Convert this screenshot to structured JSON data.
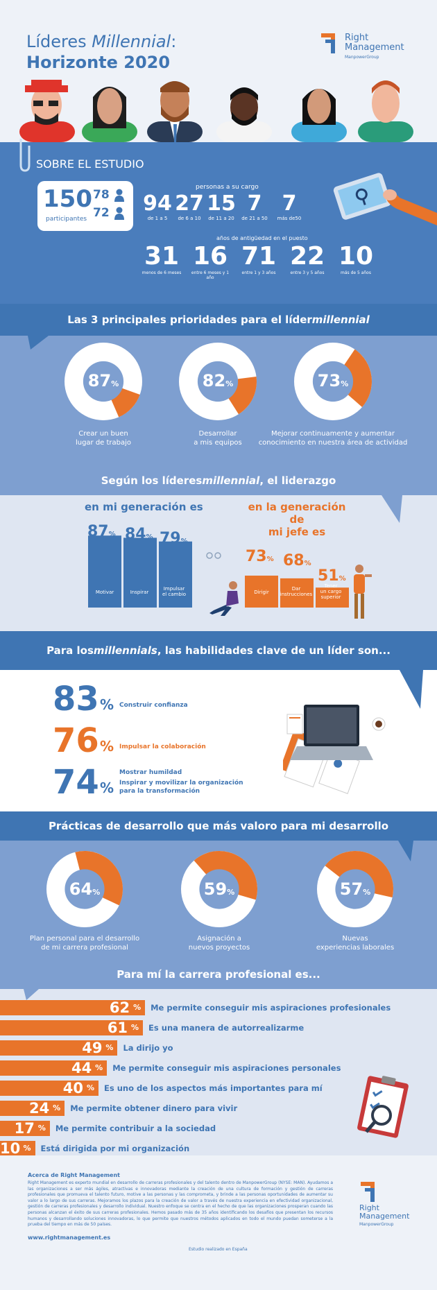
{
  "header": {
    "title_line1_pre": "Líderes ",
    "title_line1_em": "Millennial",
    "title_line1_post": ":",
    "title_line2": "Horizonte 2020",
    "logo_line1": "Right",
    "logo_line2": "Management",
    "logo_sub": "ManpowerGroup"
  },
  "about": {
    "heading": "SOBRE EL ESTUDIO",
    "participants_count": "150",
    "participants_label": "participantes",
    "male_count": "78",
    "female_count": "72",
    "reports_title": "personas a su cargo",
    "reports": [
      {
        "value": "94",
        "label": "de 1 a 5"
      },
      {
        "value": "27",
        "label": "de 6 a 10"
      },
      {
        "value": "15",
        "label": "de 11 a 20"
      },
      {
        "value": "7",
        "label": "de 21 a 50"
      },
      {
        "value": "7",
        "label": "más de50"
      }
    ],
    "tenure_title": "años de antigüedad en el puesto",
    "tenure": [
      {
        "value": "31",
        "label": "menos de 6 meses"
      },
      {
        "value": "16",
        "label": "entre 6 meses y 1 año"
      },
      {
        "value": "71",
        "label": "entre 1 y 3 años"
      },
      {
        "value": "22",
        "label": "entre 3 y 5 años"
      },
      {
        "value": "10",
        "label": "más de 5 años"
      }
    ]
  },
  "priorities": {
    "heading_pre": "Las 3 principales prioridades para el líder ",
    "heading_em": "millennial",
    "items": [
      {
        "value": 87,
        "label1": "Crear un buen",
        "label2": "lugar de trabajo"
      },
      {
        "value": 82,
        "label1": "Desarrollar",
        "label2": "a mis equipos"
      },
      {
        "value": 73,
        "label1": "Mejorar continuamente y aumentar",
        "label2": "conocimiento en nuestra área de actividad"
      }
    ]
  },
  "leadership": {
    "heading_pre": "Según los líderes ",
    "heading_em": "millennial",
    "heading_post": ", el liderazgo",
    "left_title": "en mi generación es",
    "right_title1": "en la generación de",
    "right_title2": "mi jefe es",
    "left_bars": [
      {
        "value": 87,
        "label1": "Motivar",
        "label2": ""
      },
      {
        "value": 84,
        "label1": "Inspirar",
        "label2": ""
      },
      {
        "value": 79,
        "label1": "Impulsar",
        "label2": "el cambio"
      }
    ],
    "right_bars": [
      {
        "value": 73,
        "label1": "Dirigir",
        "label2": "",
        "label3": ""
      },
      {
        "value": 68,
        "label1": "Dar",
        "label2": "instrucciones",
        "label3": ""
      },
      {
        "value": 51,
        "label1": "Tener",
        "label2": "un cargo",
        "label3": "superior"
      }
    ]
  },
  "skills": {
    "heading_pre": "Para los ",
    "heading_em": "millennials",
    "heading_post": ", las habilidades clave de un líder son...",
    "items": [
      {
        "value": "83",
        "text1": "Construir confianza",
        "text2": "",
        "color": "#3f75b3"
      },
      {
        "value": "76",
        "text1": "Impulsar la colaboración",
        "text2": "",
        "color": "#e8742a"
      },
      {
        "value": "74",
        "text1": "Mostrar humildad",
        "text2": "Inspirar y movilizar la organización",
        "text3": "para la transformación",
        "color": "#3f75b3"
      }
    ]
  },
  "practices": {
    "heading": "Prácticas de desarrollo que más valoro para mi desarrollo",
    "items": [
      {
        "value": 64,
        "label1": "Plan personal para el desarrollo",
        "label2": "de mi carrera profesional"
      },
      {
        "value": 59,
        "label1": "Asignación a",
        "label2": "nuevos proyectos"
      },
      {
        "value": 57,
        "label1": "Nuevas",
        "label2": "experiencias laborales"
      }
    ]
  },
  "career": {
    "heading": "Para mí la carrera profesional es...",
    "items": [
      {
        "value": 62,
        "text": "Me permite conseguir mis aspiraciones profesionales"
      },
      {
        "value": 61,
        "text": "Es una manera de autorrealizarme"
      },
      {
        "value": 49,
        "text": "La dirijo yo"
      },
      {
        "value": 44,
        "text": "Me permite conseguir mis aspiraciones personales"
      },
      {
        "value": 40,
        "text": "Es uno de los aspectos más importantes para mí"
      },
      {
        "value": 24,
        "text": "Me permite obtener dinero para vivir"
      },
      {
        "value": 17,
        "text": "Me permite contribuir a la sociedad"
      },
      {
        "value": 10,
        "text": "Está dirigida por mi organización"
      }
    ]
  },
  "footer": {
    "about_title": "Acerca de Right Management",
    "about_text": "Right Management es experto mundial en desarrollo de carreras profesionales y del talento dentro de ManpowerGroup (NYSE: MAN). Ayudamos a las organizaciones a ser más ágiles, atractivas e innovadoras mediante la creación de una cultura de formación y gestión de carreras profesionales que promueva el talento futuro, motive a las personas y las comprometa, y brinde a las personas oportunidades de aumentar su valor a lo largo de sus carreras. Mejoramos los plazos para la creación de valor a través de nuestra experiencia en efectividad organizacional, gestión de carreras profesionales y desarrollo individual. Nuestro enfoque se centra en el hecho de que las organizaciones prosperan cuando las personas alcanzan el éxito de sus carreras profesionales. Hemos pasado más de 35 años identificando los desafíos que presentan los recursos humanos y desarrollando soluciones innovadoras, lo que permite que nuestros métodos aplicados en todo el mundo puedan someterse a la prueba del tiempo en más de 50 países.",
    "url": "www.rightmanagement.es",
    "note": "Estudio realizado en España",
    "logo_line1": "Right",
    "logo_line2": "Management",
    "logo_sub": "ManpowerGroup"
  },
  "colors": {
    "blue": "#3f75b3",
    "light_blue": "#7e9fd0",
    "orange": "#e8742a",
    "bg": "#dfe6f2"
  }
}
